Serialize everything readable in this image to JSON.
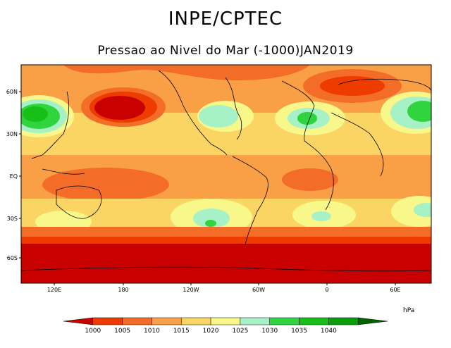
{
  "header": {
    "org": "INPE/CPTEC",
    "subtitle": "Pressao ao Nivel do Mar (-1000)JAN2019"
  },
  "map": {
    "lat_labels": [
      "60N",
      "30N",
      "EQ",
      "30S",
      "60S"
    ],
    "lon_labels": [
      "120E",
      "180",
      "120W",
      "60W",
      "0",
      "60E"
    ]
  },
  "colorbar": {
    "unit": "hPa",
    "levels": [
      "1000",
      "1005",
      "1010",
      "1015",
      "1020",
      "1025",
      "1030",
      "1035",
      "1040"
    ],
    "colors": [
      "#c80000",
      "#ee3c00",
      "#f46d28",
      "#f9a046",
      "#fbd564",
      "#f8f78a",
      "#a6f2c6",
      "#2fd43e",
      "#16c016",
      "#08a008",
      "#006400"
    ]
  }
}
